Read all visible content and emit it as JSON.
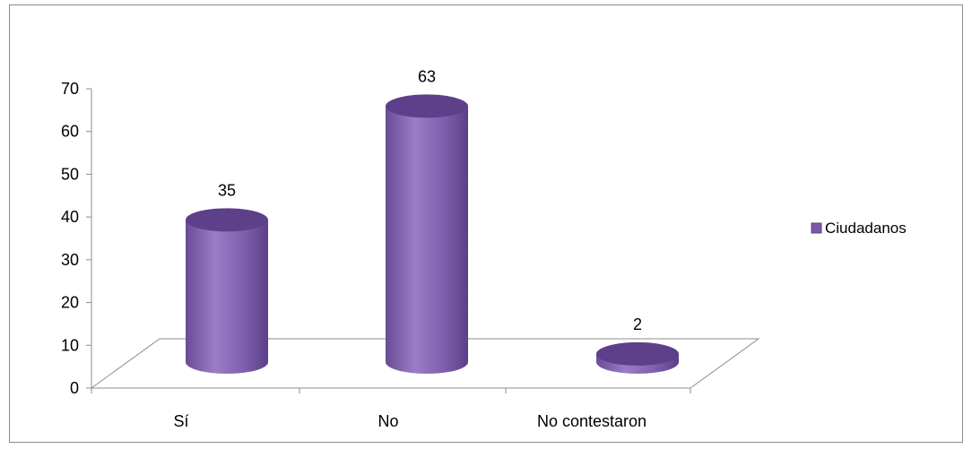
{
  "chart_data": {
    "type": "bar",
    "bar_shape": "cylinder",
    "three_d": true,
    "categories": [
      "Sí",
      "No",
      "No contestaron"
    ],
    "series": [
      {
        "name": "Ciudadanos",
        "values": [
          35,
          63,
          2
        ],
        "data_labels": [
          "35",
          "63",
          "2"
        ]
      }
    ],
    "ylim": [
      0,
      70
    ],
    "yticks": [
      "0",
      "10",
      "20",
      "30",
      "40",
      "50",
      "60",
      "70"
    ],
    "grid": false,
    "legend_position": "right",
    "title": "",
    "xlabel": "",
    "ylabel": "",
    "colors": {
      "bar_side": "#7a5aa6",
      "bar_highlight": "#9b7ec8",
      "bar_top": "#5e3f8a",
      "axis": "#8c8c8c"
    }
  }
}
